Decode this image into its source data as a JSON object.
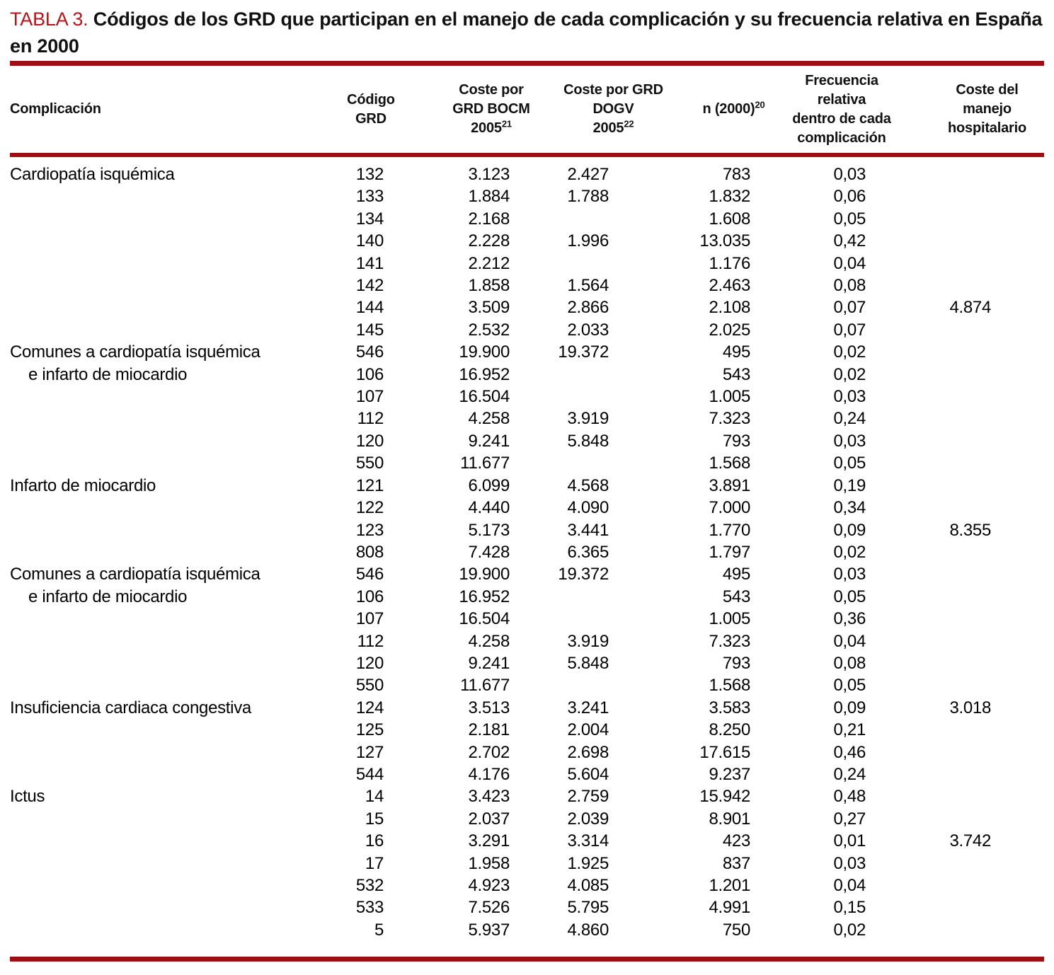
{
  "title": {
    "label": "TABLA 3.",
    "text": "Códigos de los GRD que participan en el manejo de cada complicación y su frecuencia relativa en España en 2000"
  },
  "colors": {
    "title_red": "#b5151b",
    "rule_red": "#a00d12"
  },
  "table": {
    "headers": [
      {
        "lines": [
          "Complicación"
        ],
        "sup": ""
      },
      {
        "lines": [
          "Código GRD"
        ],
        "sup": ""
      },
      {
        "lines": [
          "Coste por",
          "GRD BOCM",
          "2005"
        ],
        "sup": "21"
      },
      {
        "lines": [
          "Coste por GRD",
          "DOGV",
          "2005"
        ],
        "sup": "22"
      },
      {
        "lines": [
          "n (2000)"
        ],
        "sup": "20"
      },
      {
        "lines": [
          "Frecuencia",
          "relativa",
          "dentro de cada",
          "complicación"
        ],
        "sup": ""
      },
      {
        "lines": [
          "Coste del",
          "manejo",
          "hospitalario"
        ],
        "sup": ""
      }
    ],
    "rows": [
      {
        "cells": [
          "Cardiopatía isquémica",
          "132",
          "3.123",
          "2.427",
          "783",
          "0,03",
          ""
        ]
      },
      {
        "cells": [
          "",
          "133",
          "1.884",
          "1.788",
          "1.832",
          "0,06",
          ""
        ]
      },
      {
        "cells": [
          "",
          "134",
          "2.168",
          "",
          "1.608",
          "0,05",
          ""
        ]
      },
      {
        "cells": [
          "",
          "140",
          "2.228",
          "1.996",
          "13.035",
          "0,42",
          ""
        ]
      },
      {
        "cells": [
          "",
          "141",
          "2.212",
          "",
          "1.176",
          "0,04",
          ""
        ]
      },
      {
        "cells": [
          "",
          "142",
          "1.858",
          "1.564",
          "2.463",
          "0,08",
          ""
        ]
      },
      {
        "cells": [
          "",
          "144",
          "3.509",
          "2.866",
          "2.108",
          "0,07",
          "4.874"
        ]
      },
      {
        "cells": [
          "",
          "145",
          "2.532",
          "2.033",
          "2.025",
          "0,07",
          ""
        ]
      },
      {
        "cells": [
          "Comunes a cardiopatía isquémica",
          "546",
          "19.900",
          "19.372",
          "495",
          "0,02",
          ""
        ]
      },
      {
        "cells": [
          "e infarto de miocardio",
          "106",
          "16.952",
          "",
          "543",
          "0,02",
          ""
        ],
        "indent": true
      },
      {
        "cells": [
          "",
          "107",
          "16.504",
          "",
          "1.005",
          "0,03",
          ""
        ]
      },
      {
        "cells": [
          "",
          "112",
          "4.258",
          "3.919",
          "7.323",
          "0,24",
          ""
        ]
      },
      {
        "cells": [
          "",
          "120",
          "9.241",
          "5.848",
          "793",
          "0,03",
          ""
        ]
      },
      {
        "cells": [
          "",
          "550",
          "11.677",
          "",
          "1.568",
          "0,05",
          ""
        ]
      },
      {
        "cells": [
          "Infarto de miocardio",
          "121",
          "6.099",
          "4.568",
          "3.891",
          "0,19",
          ""
        ]
      },
      {
        "cells": [
          "",
          "122",
          "4.440",
          "4.090",
          "7.000",
          "0,34",
          ""
        ]
      },
      {
        "cells": [
          "",
          "123",
          "5.173",
          "3.441",
          "1.770",
          "0,09",
          "8.355"
        ]
      },
      {
        "cells": [
          "",
          "808",
          "7.428",
          "6.365",
          "1.797",
          "0,02",
          ""
        ]
      },
      {
        "cells": [
          "Comunes a cardiopatía isquémica",
          "546",
          "19.900",
          "19.372",
          "495",
          "0,03",
          ""
        ]
      },
      {
        "cells": [
          "e infarto de miocardio",
          "106",
          "16.952",
          "",
          "543",
          "0,05",
          ""
        ],
        "indent": true
      },
      {
        "cells": [
          "",
          "107",
          "16.504",
          "",
          "1.005",
          "0,36",
          ""
        ]
      },
      {
        "cells": [
          "",
          "112",
          "4.258",
          "3.919",
          "7.323",
          "0,04",
          ""
        ]
      },
      {
        "cells": [
          "",
          "120",
          "9.241",
          "5.848",
          "793",
          "0,08",
          ""
        ]
      },
      {
        "cells": [
          "",
          "550",
          "11.677",
          "",
          "1.568",
          "0,05",
          ""
        ]
      },
      {
        "cells": [
          "Insuficiencia cardiaca congestiva",
          "124",
          "3.513",
          "3.241",
          "3.583",
          "0,09",
          "3.018"
        ]
      },
      {
        "cells": [
          "",
          "125",
          "2.181",
          "2.004",
          "8.250",
          "0,21",
          ""
        ]
      },
      {
        "cells": [
          "",
          "127",
          "2.702",
          "2.698",
          "17.615",
          "0,46",
          ""
        ]
      },
      {
        "cells": [
          "",
          "544",
          "4.176",
          "5.604",
          "9.237",
          "0,24",
          ""
        ]
      },
      {
        "cells": [
          "Ictus",
          "14",
          "3.423",
          "2.759",
          "15.942",
          "0,48",
          ""
        ]
      },
      {
        "cells": [
          "",
          "15",
          "2.037",
          "2.039",
          "8.901",
          "0,27",
          ""
        ]
      },
      {
        "cells": [
          "",
          "16",
          "3.291",
          "3.314",
          "423",
          "0,01",
          "3.742"
        ]
      },
      {
        "cells": [
          "",
          "17",
          "1.958",
          "1.925",
          "837",
          "0,03",
          ""
        ]
      },
      {
        "cells": [
          "",
          "532",
          "4.923",
          "4.085",
          "1.201",
          "0,04",
          ""
        ]
      },
      {
        "cells": [
          "",
          "533",
          "7.526",
          "5.795",
          "4.991",
          "0,15",
          ""
        ]
      },
      {
        "cells": [
          "",
          "5",
          "5.937",
          "4.860",
          "750",
          "0,02",
          ""
        ]
      }
    ]
  }
}
